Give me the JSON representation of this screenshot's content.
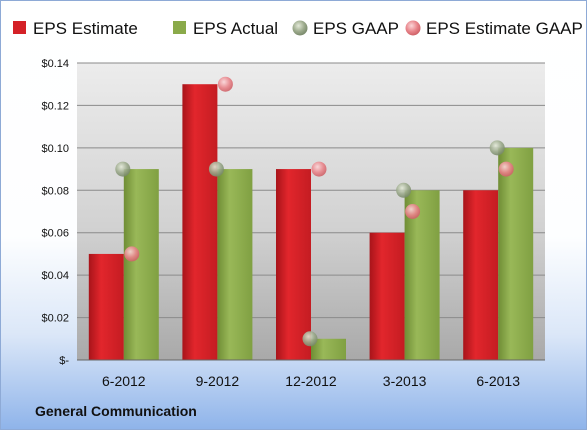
{
  "company": "General Communication",
  "chart_data": {
    "type": "bar",
    "categories": [
      "6-2012",
      "9-2012",
      "12-2012",
      "3-2013",
      "6-2013"
    ],
    "series": [
      {
        "name": "EPS Estimate",
        "kind": "bar",
        "color": "#d42127",
        "values": [
          0.05,
          0.13,
          0.09,
          0.06,
          0.08
        ]
      },
      {
        "name": "EPS Actual",
        "kind": "bar",
        "color": "#8aaa4a",
        "values": [
          0.09,
          0.09,
          0.01,
          0.08,
          0.1
        ]
      },
      {
        "name": "EPS GAAP",
        "kind": "marker",
        "color": "#9aaa8a",
        "values": [
          0.09,
          0.09,
          0.01,
          0.08,
          0.1
        ]
      },
      {
        "name": "EPS Estimate GAAP",
        "kind": "marker",
        "color": "#e8848a",
        "values": [
          0.05,
          0.13,
          0.09,
          0.07,
          0.09
        ]
      }
    ],
    "ylim": [
      0,
      0.14
    ],
    "yticks": [
      0,
      0.02,
      0.04,
      0.06,
      0.08,
      0.1,
      0.12,
      0.14
    ],
    "ytick_labels": [
      "$-",
      "$0.02",
      "$0.04",
      "$0.06",
      "$0.08",
      "$0.10",
      "$0.12",
      "$0.14"
    ],
    "grid": true,
    "legend": "top"
  }
}
